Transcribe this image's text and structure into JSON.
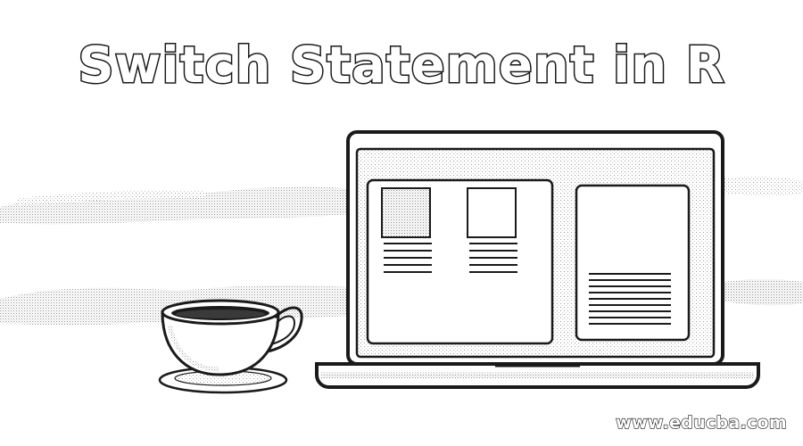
{
  "banner": {
    "title": "Switch Statement in R",
    "watermark": "www.educba.com"
  },
  "illustration": {
    "objects": [
      "laptop",
      "coffee-cup",
      "saucer",
      "background-clouds"
    ],
    "style": "black-and-white line art with halftone shading",
    "colors": {
      "background": "#ffffff",
      "outline": "#1a1a1a",
      "shading": "#9a9a9a"
    }
  }
}
